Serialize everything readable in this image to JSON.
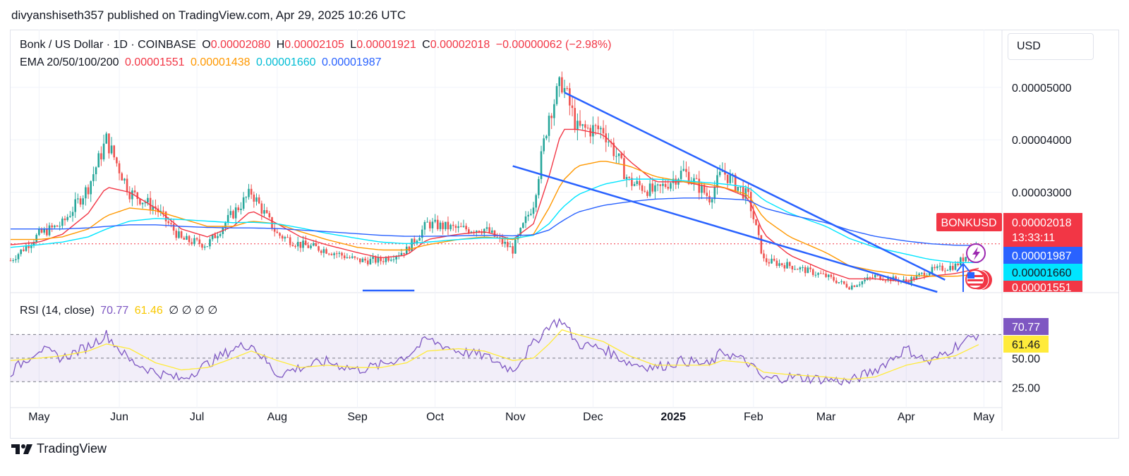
{
  "header": {
    "publisher_line": "divyanshiseth357 published on TradingView.com, Apr 29, 2025 10:26 UTC"
  },
  "currency_button": "USD",
  "legend": {
    "symbol": "Bonk / US Dollar · 1D · COINBASE",
    "o_label": "O",
    "o_value": "0.00002080",
    "h_label": "H",
    "h_value": "0.00002105",
    "l_label": "L",
    "l_value": "0.00001921",
    "c_label": "C",
    "c_value": "0.00002018",
    "change": "−0.00000062 (−2.98%)",
    "ema_label": "EMA 20/50/100/200",
    "ema20": "0.00001551",
    "ema50": "0.00001438",
    "ema100": "0.00001660",
    "ema200": "0.00001987",
    "rsi_label": "RSI (14, close)",
    "rsi_value": "70.77",
    "rsi_ma_value": "61.46",
    "rsi_flags": "∅ ∅ ∅ ∅"
  },
  "price_badges": {
    "symbol_tag": "BONKUSD",
    "last_price": "0.00002018",
    "countdown": "13:33:11",
    "ema200": "0.00001987",
    "ema100": "0.00001660",
    "ema20": "0.00001551",
    "rsi": "70.77",
    "rsi_ma": "61.46"
  },
  "footer": {
    "brand": "TradingView"
  },
  "colors": {
    "up": "#26a69a",
    "down": "#ef5350",
    "ema20": "#f23645",
    "ema50": "#ff9800",
    "ema100": "#00e5ff",
    "ema200": "#2962ff",
    "rsi": "#7e57c2",
    "rsi_ma": "#ffeb3b",
    "trendline": "#2962ff"
  },
  "chart_data": [
    {
      "type": "line",
      "title": "Bonk / US Dollar · 1D · COINBASE",
      "x": [
        "2024-04-20",
        "2024-05-01",
        "2024-05-10",
        "2024-05-20",
        "2024-05-27",
        "2024-06-05",
        "2024-06-15",
        "2024-06-25",
        "2024-07-05",
        "2024-07-15",
        "2024-07-22",
        "2024-08-01",
        "2024-08-10",
        "2024-08-20",
        "2024-09-01",
        "2024-09-10",
        "2024-09-20",
        "2024-09-28",
        "2024-10-10",
        "2024-10-20",
        "2024-10-31",
        "2024-11-08",
        "2024-11-14",
        "2024-11-19",
        "2024-11-25",
        "2024-12-05",
        "2024-12-15",
        "2024-12-25",
        "2025-01-05",
        "2025-01-15",
        "2025-01-20",
        "2025-01-30",
        "2025-02-05",
        "2025-02-15",
        "2025-03-01",
        "2025-03-10",
        "2025-03-20",
        "2025-04-01",
        "2025-04-10",
        "2025-04-20",
        "2025-04-29"
      ],
      "series": [
        {
          "name": "Close",
          "values": [
            1.7e-05,
            2.2e-05,
            2.4e-05,
            3.1e-05,
            4e-05,
            3e-05,
            2.7e-05,
            2.1e-05,
            2e-05,
            2.6e-05,
            3e-05,
            2.2e-05,
            2e-05,
            1.9e-05,
            1.7e-05,
            1.7e-05,
            1.9e-05,
            2.4e-05,
            2.3e-05,
            2.3e-05,
            1.9e-05,
            2.8e-05,
            4.5e-05,
            5.1e-05,
            4.2e-05,
            4.2e-05,
            3.2e-05,
            3e-05,
            3.4e-05,
            2.9e-05,
            3.4e-05,
            2.9e-05,
            1.7e-05,
            1.6e-05,
            1.4e-05,
            1.2e-05,
            1.4e-05,
            1.3e-05,
            1.5e-05,
            1.6e-05,
            2.018e-05
          ]
        },
        {
          "name": "EMA 20",
          "values": [
            2e-05,
            2.05e-05,
            2.2e-05,
            2.6e-05,
            3.1e-05,
            3e-05,
            2.7e-05,
            2.3e-05,
            2.15e-05,
            2.35e-05,
            2.65e-05,
            2.4e-05,
            2.15e-05,
            2e-05,
            1.85e-05,
            1.75e-05,
            1.8e-05,
            2.1e-05,
            2.2e-05,
            2.25e-05,
            2.1e-05,
            2.4e-05,
            3.3e-05,
            4.2e-05,
            4.2e-05,
            4.1e-05,
            3.6e-05,
            3.2e-05,
            3.2e-05,
            3.1e-05,
            3.1e-05,
            2.9e-05,
            2.2e-05,
            1.8e-05,
            1.5e-05,
            1.35e-05,
            1.35e-05,
            1.3e-05,
            1.4e-05,
            1.45e-05,
            1.551e-05
          ]
        },
        {
          "name": "EMA 50",
          "values": [
            2.1e-05,
            2.1e-05,
            2.15e-05,
            2.3e-05,
            2.55e-05,
            2.7e-05,
            2.65e-05,
            2.5e-05,
            2.35e-05,
            2.35e-05,
            2.45e-05,
            2.4e-05,
            2.25e-05,
            2.1e-05,
            1.95e-05,
            1.9e-05,
            1.9e-05,
            2e-05,
            2.1e-05,
            2.15e-05,
            2.1e-05,
            2.2e-05,
            2.7e-05,
            3.2e-05,
            3.5e-05,
            3.6e-05,
            3.5e-05,
            3.3e-05,
            3.2e-05,
            3.15e-05,
            3.1e-05,
            2.95e-05,
            2.5e-05,
            2.15e-05,
            1.85e-05,
            1.6e-05,
            1.5e-05,
            1.42e-05,
            1.4e-05,
            1.4e-05,
            1.438e-05
          ]
        },
        {
          "name": "EMA 100",
          "values": [
            1.95e-05,
            2e-05,
            2.05e-05,
            2.15e-05,
            2.3e-05,
            2.45e-05,
            2.5e-05,
            2.48e-05,
            2.45e-05,
            2.42e-05,
            2.43e-05,
            2.4e-05,
            2.32e-05,
            2.22e-05,
            2.12e-05,
            2.05e-05,
            2.02e-05,
            2.05e-05,
            2.1e-05,
            2.13e-05,
            2.12e-05,
            2.18e-05,
            2.4e-05,
            2.7e-05,
            2.95e-05,
            3.15e-05,
            3.25e-05,
            3.25e-05,
            3.22e-05,
            3.18e-05,
            3.16e-05,
            3.1e-05,
            2.85e-05,
            2.6e-05,
            2.35e-05,
            2.12e-05,
            1.95e-05,
            1.82e-05,
            1.72e-05,
            1.66e-05,
            1.66e-05
          ]
        },
        {
          "name": "EMA 200",
          "values": [
            2.3e-05,
            2.3e-05,
            2.3e-05,
            2.32e-05,
            2.35e-05,
            2.38e-05,
            2.38e-05,
            2.35e-05,
            2.33e-05,
            2.32e-05,
            2.32e-05,
            2.31e-05,
            2.28e-05,
            2.25e-05,
            2.21e-05,
            2.18e-05,
            2.16e-05,
            2.16e-05,
            2.17e-05,
            2.18e-05,
            2.17e-05,
            2.19e-05,
            2.28e-05,
            2.45e-05,
            2.62e-05,
            2.75e-05,
            2.82e-05,
            2.87e-05,
            2.89e-05,
            2.89e-05,
            2.88e-05,
            2.85e-05,
            2.7e-05,
            2.57e-05,
            2.42e-05,
            2.28e-05,
            2.16e-05,
            2.07e-05,
            2.02e-05,
            1.99e-05,
            1.987e-05
          ]
        }
      ],
      "ylim": [
        1.1e-05,
        6.1e-05
      ],
      "yticks": [
        "0.00005000",
        "0.00004000",
        "0.00003000"
      ],
      "xticks": [
        "May",
        "Jun",
        "Jul",
        "Aug",
        "Sep",
        "Oct",
        "Nov",
        "Dec",
        "2025",
        "Feb",
        "Mar",
        "Apr",
        "May"
      ],
      "annotations": {
        "upper_trendline": [
          [
            "2024-11-20",
            4.9e-05
          ],
          [
            "2025-04-16",
            1.33e-05
          ]
        ],
        "lower_trendline": [
          [
            "2024-10-31",
            3.5e-05
          ],
          [
            "2025-04-13",
            1.1e-05
          ]
        ]
      },
      "grid": true
    },
    {
      "type": "line",
      "title": "RSI (14, close)",
      "x": [
        "2024-04-20",
        "2024-05-01",
        "2024-05-10",
        "2024-05-20",
        "2024-05-27",
        "2024-06-05",
        "2024-06-15",
        "2024-06-25",
        "2024-07-05",
        "2024-07-15",
        "2024-07-22",
        "2024-08-01",
        "2024-08-10",
        "2024-08-20",
        "2024-09-01",
        "2024-09-10",
        "2024-09-20",
        "2024-09-28",
        "2024-10-10",
        "2024-10-20",
        "2024-10-31",
        "2024-11-08",
        "2024-11-14",
        "2024-11-19",
        "2024-11-25",
        "2024-12-05",
        "2024-12-15",
        "2024-12-25",
        "2025-01-05",
        "2025-01-15",
        "2025-01-20",
        "2025-01-30",
        "2025-02-05",
        "2025-02-15",
        "2025-03-01",
        "2025-03-10",
        "2025-03-20",
        "2025-04-01",
        "2025-04-10",
        "2025-04-20",
        "2025-04-29"
      ],
      "series": [
        {
          "name": "RSI",
          "values": [
            38,
            58,
            50,
            60,
            70,
            48,
            38,
            32,
            45,
            58,
            62,
            36,
            42,
            47,
            40,
            44,
            52,
            66,
            56,
            52,
            40,
            62,
            78,
            82,
            62,
            58,
            46,
            42,
            48,
            44,
            56,
            46,
            32,
            34,
            32,
            30,
            40,
            58,
            46,
            60,
            70.77
          ]
        },
        {
          "name": "RSI MA",
          "values": [
            48,
            50,
            52,
            56,
            62,
            58,
            46,
            40,
            42,
            50,
            56,
            48,
            42,
            44,
            42,
            42,
            46,
            56,
            58,
            56,
            48,
            50,
            62,
            74,
            70,
            64,
            52,
            44,
            44,
            44,
            48,
            46,
            38,
            36,
            34,
            32,
            34,
            44,
            48,
            52,
            61.46
          ]
        }
      ],
      "ylim": [
        17,
        87
      ],
      "yticks": [
        "50.00",
        "25.00"
      ],
      "bands": [
        30,
        50,
        70
      ]
    }
  ]
}
